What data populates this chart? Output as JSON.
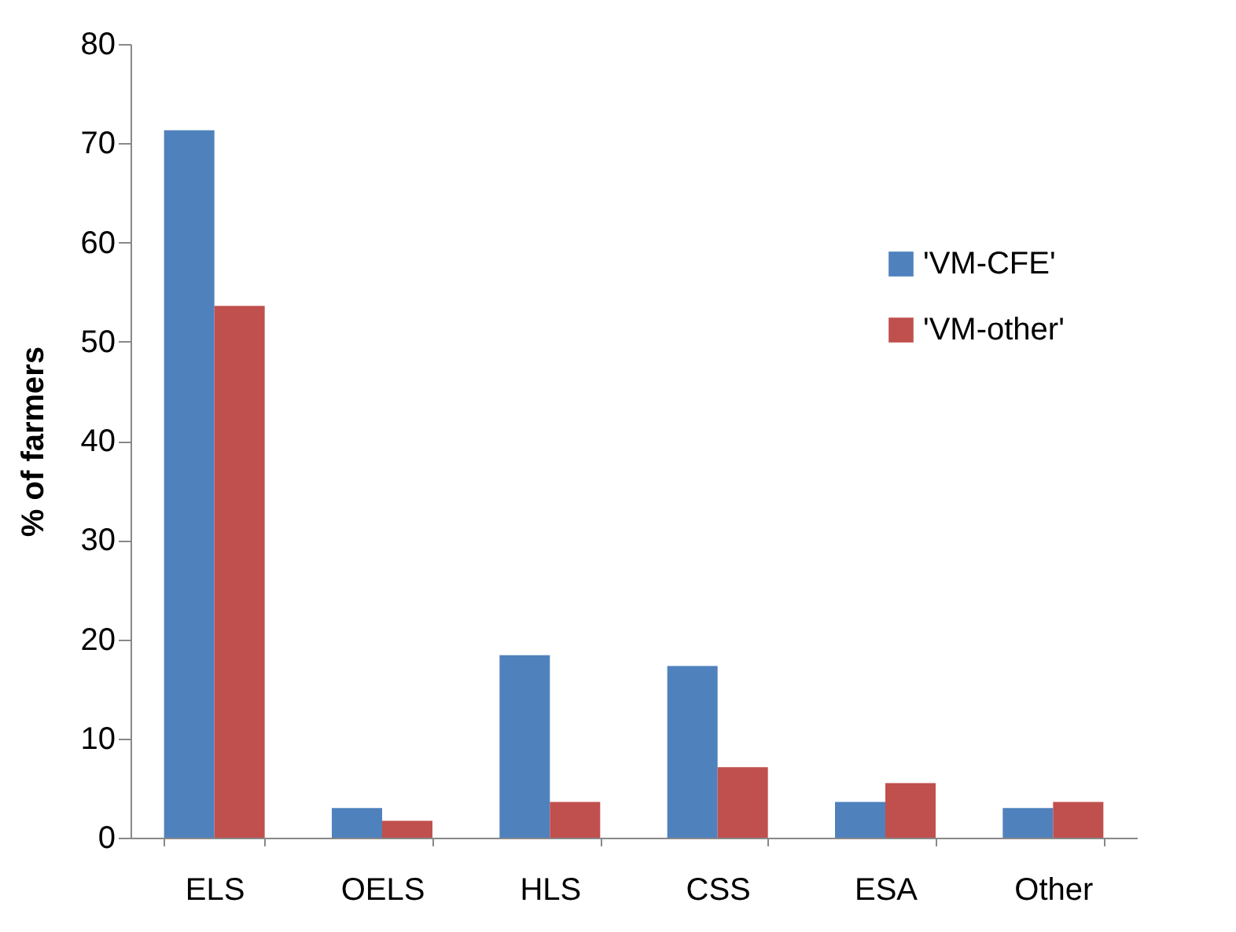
{
  "chart_data": {
    "type": "bar",
    "ylabel": "% of farmers",
    "categories": [
      "ELS",
      "OELS",
      "HLS",
      "CSS",
      "ESA",
      "Other"
    ],
    "series": [
      {
        "name": "'VM-CFE'",
        "color": "#4f81bd",
        "values": [
          71.3,
          3.0,
          18.4,
          17.3,
          3.6,
          3.0
        ]
      },
      {
        "name": "'VM-other'",
        "color": "#c0504d",
        "values": [
          53.6,
          1.7,
          3.6,
          7.1,
          5.5,
          3.6
        ]
      }
    ],
    "ylim": [
      0,
      80
    ],
    "yticks": [
      0,
      10,
      20,
      30,
      40,
      50,
      60,
      70,
      80
    ],
    "grid": false,
    "legend": "top right"
  }
}
